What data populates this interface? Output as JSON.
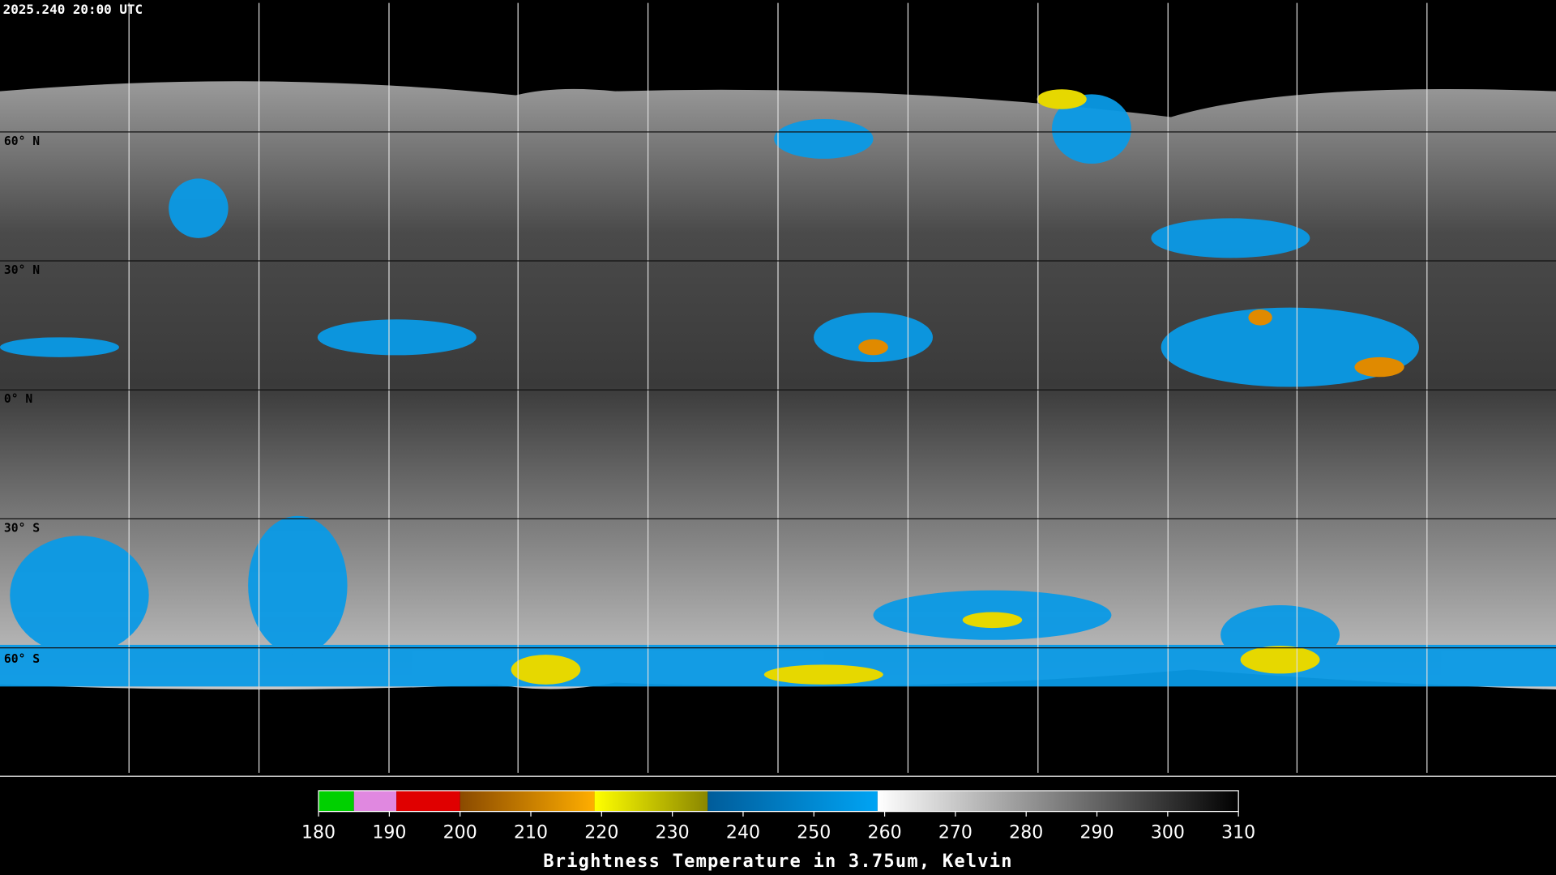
{
  "timestamp": "2025.240 20:00 UTC",
  "latitude_labels": [
    "60° N",
    "30° N",
    "0° N",
    "30° S",
    "60° S"
  ],
  "colorbar": {
    "title": "Brightness Temperature in 3.75um, Kelvin",
    "range": [
      180,
      310
    ],
    "ticks": [
      180,
      190,
      200,
      210,
      220,
      230,
      240,
      250,
      260,
      270,
      280,
      290,
      300,
      310
    ],
    "segments": [
      {
        "from": 180,
        "to": 185,
        "colors": [
          "#00d000",
          "#00d000"
        ]
      },
      {
        "from": 185,
        "to": 191,
        "colors": [
          "#e088e0",
          "#e088e0"
        ]
      },
      {
        "from": 191,
        "to": 200,
        "colors": [
          "#e00000",
          "#e00000"
        ]
      },
      {
        "from": 200,
        "to": 219,
        "colors": [
          "#8a4a00",
          "#ffae00"
        ]
      },
      {
        "from": 219,
        "to": 235,
        "colors": [
          "#ffff00",
          "#8a8600"
        ]
      },
      {
        "from": 235,
        "to": 259,
        "colors": [
          "#005c9a",
          "#00a4f4"
        ]
      },
      {
        "from": 259,
        "to": 310,
        "colors": [
          "#ffffff",
          "#000000"
        ]
      }
    ]
  }
}
